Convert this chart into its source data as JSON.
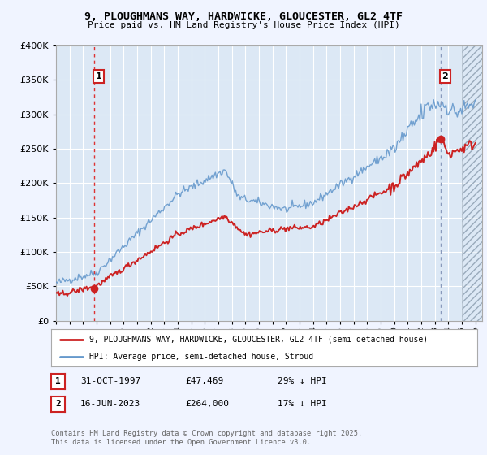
{
  "title": "9, PLOUGHMANS WAY, HARDWICKE, GLOUCESTER, GL2 4TF",
  "subtitle": "Price paid vs. HM Land Registry's House Price Index (HPI)",
  "background_color": "#f0f4ff",
  "plot_bg_color": "#dce8f5",
  "legend_entry1": "9, PLOUGHMANS WAY, HARDWICKE, GLOUCESTER, GL2 4TF (semi-detached house)",
  "legend_entry2": "HPI: Average price, semi-detached house, Stroud",
  "annotation1_date": "31-OCT-1997",
  "annotation1_price": "£47,469",
  "annotation1_hpi": "29% ↓ HPI",
  "annotation2_date": "16-JUN-2023",
  "annotation2_price": "£264,000",
  "annotation2_hpi": "17% ↓ HPI",
  "footer": "Contains HM Land Registry data © Crown copyright and database right 2025.\nThis data is licensed under the Open Government Licence v3.0.",
  "ylim": [
    0,
    400000
  ],
  "xlim_start": 1995.0,
  "xlim_end": 2026.5,
  "sale1_x": 1997.83,
  "sale1_y": 47469,
  "sale2_x": 2023.46,
  "sale2_y": 264000,
  "hpi_color": "#6699cc",
  "price_color": "#cc2222",
  "vline1_color": "#dd3333",
  "vline2_color": "#8899bb",
  "marker_color": "#cc2222",
  "annotation_box_color": "#cc2222"
}
